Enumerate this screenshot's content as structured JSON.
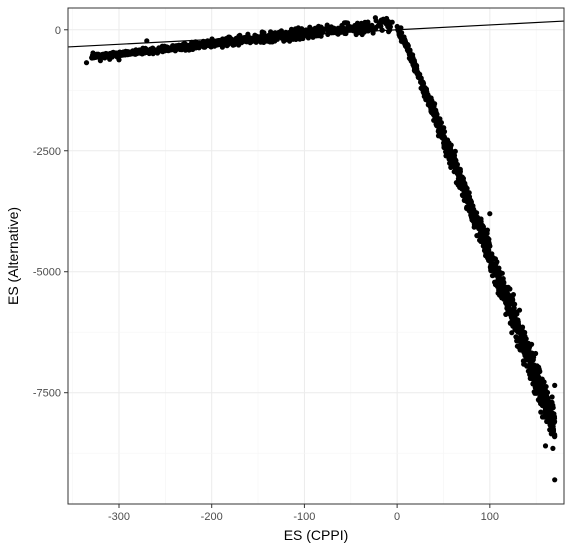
{
  "chart_data": {
    "type": "scatter",
    "title": "",
    "xlabel": "ES (CPPI)",
    "ylabel": "ES (Alternative)",
    "xlim": [
      -355,
      180
    ],
    "ylim": [
      -9800,
      450
    ],
    "x_ticks": [
      -300,
      -200,
      -100,
      0,
      100
    ],
    "y_ticks": [
      0,
      -2500,
      -5000,
      -7500
    ],
    "grid": true,
    "legend": "none",
    "reference_line": {
      "type": "identity",
      "slope": 1,
      "intercept": 0
    },
    "marker_color": "#000000",
    "points_description_note": "",
    "clusters": [
      {
        "name": "",
        "x_range": [
          -330,
          -5
        ],
        "y_at_x_min": -560,
        "y_at_x_max": 120,
        "spread_y": 90,
        "count": 900
      },
      {
        "name": "",
        "x_range": [
          0,
          170
        ],
        "y_at_x_min": 80,
        "y_at_x_max": -8200,
        "spread_y": 260,
        "count": 1100
      }
    ],
    "outliers": [
      {
        "x": -335,
        "y": -680
      },
      {
        "x": -328,
        "y": -480
      },
      {
        "x": -320,
        "y": -640
      },
      {
        "x": -310,
        "y": -610
      },
      {
        "x": -302,
        "y": -560
      },
      {
        "x": -300,
        "y": -620
      },
      {
        "x": -270,
        "y": -230
      },
      {
        "x": 160,
        "y": -8600
      },
      {
        "x": 168,
        "y": -8650
      },
      {
        "x": 170,
        "y": -9300
      },
      {
        "x": 165,
        "y": -7700
      },
      {
        "x": 170,
        "y": -7350
      },
      {
        "x": 155,
        "y": -7900
      },
      {
        "x": 100,
        "y": -3800
      },
      {
        "x": 145,
        "y": -6500
      }
    ]
  }
}
